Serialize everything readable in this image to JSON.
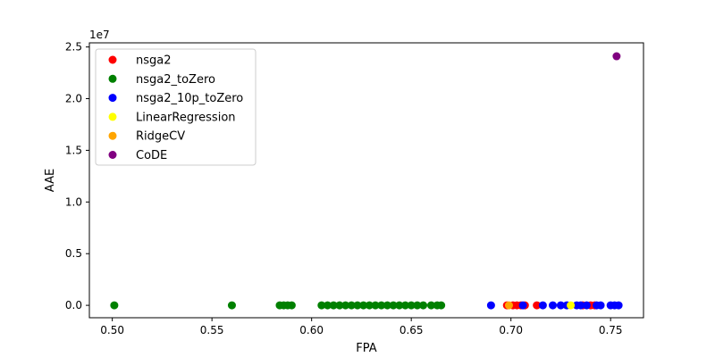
{
  "chart_data": {
    "type": "scatter",
    "xlabel": "FPA",
    "ylabel": "AAE",
    "y_offset_label": "1e7",
    "xlim": [
      0.4885,
      0.7665
    ],
    "ylim": [
      -1.2,
      25.4
    ],
    "y_scale_note": "values in units of 1e7",
    "x_ticks": [
      0.5,
      0.55,
      0.6,
      0.65,
      0.7,
      0.75
    ],
    "x_tick_labels": [
      "0.50",
      "0.55",
      "0.60",
      "0.65",
      "0.70",
      "0.75"
    ],
    "y_ticks": [
      0.0,
      0.5,
      1.0,
      1.5,
      2.0,
      2.5
    ],
    "y_tick_labels": [
      "0.0",
      "0.5",
      "1.0",
      "1.5",
      "2.0",
      "2.5"
    ],
    "grid": false,
    "legend_position": "top-left",
    "series": [
      {
        "name": "nsga2",
        "color": "#ff0000",
        "x": [
          0.698,
          0.701,
          0.703,
          0.705,
          0.707,
          0.713,
          0.736,
          0.74,
          0.742
        ],
        "y": [
          0,
          0,
          0,
          0,
          0,
          0,
          0,
          0,
          0
        ]
      },
      {
        "name": "nsga2_toZero",
        "color": "#008000",
        "x": [
          0.501,
          0.56,
          0.584,
          0.586,
          0.588,
          0.59,
          0.605,
          0.608,
          0.611,
          0.614,
          0.617,
          0.62,
          0.623,
          0.626,
          0.629,
          0.632,
          0.635,
          0.638,
          0.641,
          0.644,
          0.647,
          0.65,
          0.653,
          0.656,
          0.66,
          0.663,
          0.665
        ],
        "y": [
          0,
          0,
          0,
          0,
          0,
          0,
          0,
          0,
          0,
          0,
          0,
          0,
          0,
          0,
          0,
          0,
          0,
          0,
          0,
          0,
          0,
          0,
          0,
          0,
          0,
          0,
          0
        ]
      },
      {
        "name": "nsga2_10p_toZero",
        "color": "#0000ff",
        "x": [
          0.69,
          0.706,
          0.716,
          0.721,
          0.725,
          0.728,
          0.733,
          0.735,
          0.738,
          0.743,
          0.745,
          0.75,
          0.752,
          0.754
        ],
        "y": [
          0,
          0,
          0,
          0,
          0,
          0,
          0,
          0,
          0,
          0,
          0,
          0,
          0,
          0
        ]
      },
      {
        "name": "LinearRegression",
        "color": "#ffff00",
        "x": [
          0.73
        ],
        "y": [
          0
        ]
      },
      {
        "name": "RidgeCV",
        "color": "#ffa500",
        "x": [
          0.699
        ],
        "y": [
          0
        ]
      },
      {
        "name": "CoDE",
        "color": "#800080",
        "x": [
          0.753
        ],
        "y": [
          24.1
        ]
      }
    ]
  }
}
